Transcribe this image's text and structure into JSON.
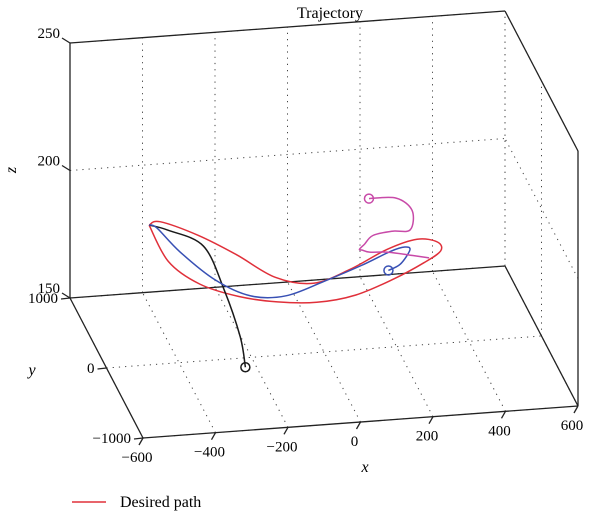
{
  "chart_data": {
    "type": "line",
    "projection": "3d",
    "title": "Trajectory",
    "xlabel": "x",
    "ylabel": "y",
    "zlabel": "z",
    "xlim": [
      -600,
      600
    ],
    "ylim": [
      -1000,
      1000
    ],
    "zlim": [
      150,
      250
    ],
    "x_ticks": [
      "−600",
      "−400",
      "−200",
      "0",
      "200",
      "400",
      "600"
    ],
    "y_ticks": [
      "−1000",
      "0",
      "1000"
    ],
    "z_ticks": [
      "150",
      "200",
      "250"
    ],
    "grid": true,
    "legend_position": "bottom-left",
    "legend": [
      {
        "label": "Desired path",
        "color": "#e0303a"
      }
    ],
    "series": [
      {
        "name": "Desired path",
        "color": "#e0303a",
        "points": [
          [
            -430,
            520,
            190
          ],
          [
            -380,
            490,
            176
          ],
          [
            -300,
            430,
            168
          ],
          [
            -200,
            360,
            164
          ],
          [
            -100,
            280,
            163
          ],
          [
            0,
            200,
            164
          ],
          [
            100,
            120,
            168
          ],
          [
            200,
            60,
            175
          ],
          [
            280,
            40,
            181
          ],
          [
            330,
            80,
            184
          ],
          [
            330,
            170,
            185
          ],
          [
            280,
            230,
            185
          ],
          [
            200,
            260,
            181
          ],
          [
            100,
            270,
            174
          ],
          [
            0,
            290,
            169
          ],
          [
            -100,
            340,
            171
          ],
          [
            -200,
            410,
            179
          ],
          [
            -300,
            470,
            186
          ],
          [
            -400,
            520,
            191
          ],
          [
            -430,
            520,
            190
          ]
        ]
      },
      {
        "color": "#1a1a1a",
        "points": [
          [
            -230,
            -130,
            150
          ],
          [
            -230,
            10,
            158
          ],
          [
            -250,
            250,
            170
          ],
          [
            -290,
            420,
            183
          ],
          [
            -380,
            500,
            188
          ],
          [
            -430,
            520,
            190
          ]
        ]
      },
      {
        "color": "#3850b4",
        "points": [
          [
            210,
            320,
            171
          ],
          [
            240,
            290,
            174
          ],
          [
            260,
            230,
            181
          ],
          [
            240,
            170,
            184
          ],
          [
            200,
            160,
            183
          ],
          [
            120,
            170,
            178
          ],
          [
            20,
            200,
            172
          ],
          [
            -80,
            250,
            166
          ],
          [
            -170,
            320,
            165
          ],
          [
            -260,
            400,
            170
          ],
          [
            -350,
            470,
            180
          ],
          [
            -410,
            510,
            189
          ],
          [
            -430,
            520,
            190
          ]
        ]
      },
      {
        "color": "#c84aa8",
        "points": [
          [
            120,
            -40,
            210
          ],
          [
            200,
            10,
            208
          ],
          [
            250,
            70,
            201
          ],
          [
            250,
            120,
            192
          ],
          [
            200,
            120,
            192
          ],
          [
            150,
            150,
            190
          ],
          [
            130,
            180,
            186
          ],
          [
            120,
            220,
            183
          ],
          [
            130,
            240,
            182
          ],
          [
            150,
            240,
            181
          ],
          [
            200,
            220,
            181
          ],
          [
            260,
            150,
            181
          ],
          [
            300,
            100,
            181
          ]
        ]
      }
    ],
    "markers": [
      {
        "label": "o",
        "color": "#1a1a1a",
        "point": [
          -230,
          -130,
          150
        ]
      },
      {
        "label": "o",
        "color": "#3850b4",
        "point": [
          210,
          320,
          171
        ]
      },
      {
        "label": "o",
        "color": "#c84aa8",
        "point": [
          120,
          -40,
          210
        ]
      }
    ]
  }
}
